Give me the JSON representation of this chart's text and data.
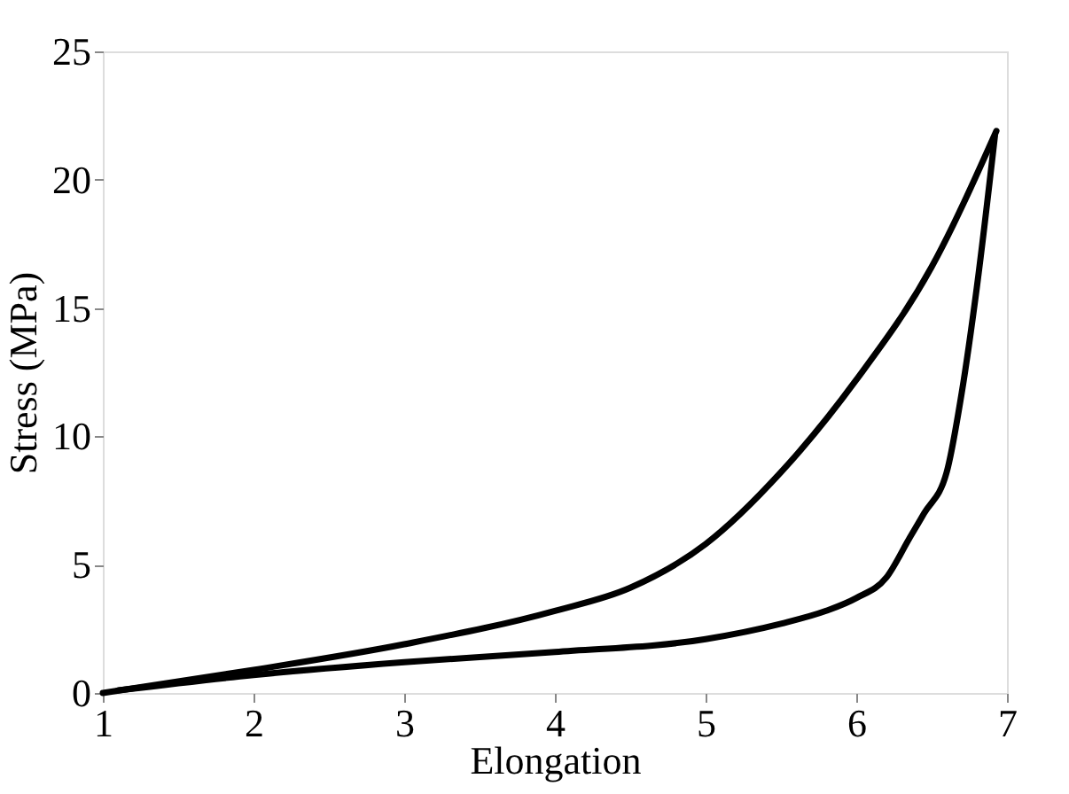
{
  "chart_data": {
    "type": "line",
    "xlabel": "Elongation",
    "ylabel": "Stress (MPa)",
    "xlim": [
      1,
      7
    ],
    "xticks": [
      1,
      2,
      3,
      4,
      5,
      6,
      7
    ],
    "ylim": [
      0,
      25
    ],
    "yticks": [
      0,
      5,
      10,
      15,
      20,
      25
    ],
    "grid": false,
    "legend": false,
    "marker": "none",
    "line_style": "solid",
    "series": [
      {
        "color": "#000000",
        "x": [
          1,
          2,
          3,
          4,
          4.5,
          5,
          5.5,
          6,
          6.5,
          6.93
        ],
        "values": [
          0,
          0.9,
          1.9,
          3.2,
          4.1,
          5.8,
          8.6,
          12.2,
          16.6,
          21.9
        ]
      },
      {
        "color": "#000000",
        "x": [
          1.1,
          2,
          3,
          4,
          5,
          5.5,
          5.8,
          6,
          6.2,
          6.35,
          6.45,
          6.6,
          6.7,
          6.8,
          6.92
        ],
        "values": [
          0.1,
          0.7,
          1.2,
          1.6,
          2.1,
          2.7,
          3.2,
          3.7,
          4.5,
          6.0,
          7.0,
          8.6,
          11.7,
          15.8,
          21.7
        ]
      }
    ]
  }
}
